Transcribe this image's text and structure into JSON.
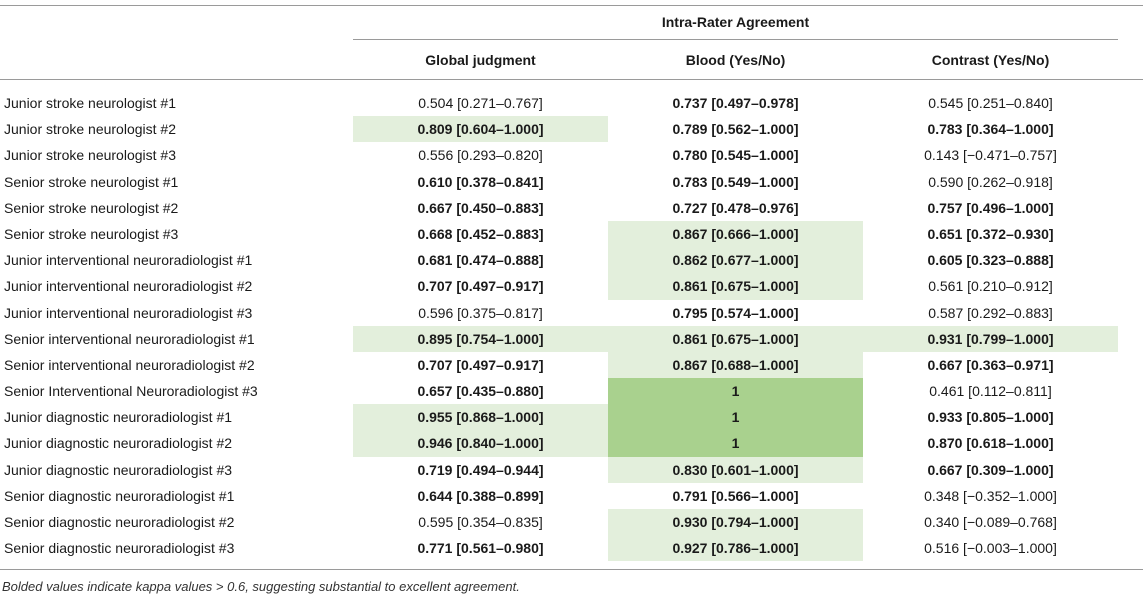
{
  "table": {
    "group_title": "Intra-Rater Agreement",
    "columns": [
      "Global judgment",
      "Blood (Yes/No)",
      "Contrast (Yes/No)"
    ],
    "rows": [
      {
        "label": "Junior stroke neurologist #1",
        "cells": [
          {
            "text": "0.504 [0.271–0.767]",
            "bold": false,
            "highlight": "none"
          },
          {
            "text": "0.737 [0.497–0.978]",
            "bold": true,
            "highlight": "none"
          },
          {
            "text": "0.545 [0.251–0.840]",
            "bold": false,
            "highlight": "none"
          }
        ]
      },
      {
        "label": "Junior stroke neurologist #2",
        "cells": [
          {
            "text": "0.809 [0.604–1.000]",
            "bold": true,
            "highlight": "light"
          },
          {
            "text": "0.789 [0.562–1.000]",
            "bold": true,
            "highlight": "none"
          },
          {
            "text": "0.783 [0.364–1.000]",
            "bold": true,
            "highlight": "none"
          }
        ]
      },
      {
        "label": "Junior stroke neurologist #3",
        "cells": [
          {
            "text": "0.556 [0.293–0.820]",
            "bold": false,
            "highlight": "none"
          },
          {
            "text": "0.780 [0.545–1.000]",
            "bold": true,
            "highlight": "none"
          },
          {
            "text": "0.143 [−0.471–0.757]",
            "bold": false,
            "highlight": "none"
          }
        ]
      },
      {
        "label": "Senior stroke neurologist #1",
        "cells": [
          {
            "text": "0.610 [0.378–0.841]",
            "bold": true,
            "highlight": "none"
          },
          {
            "text": "0.783 [0.549–1.000]",
            "bold": true,
            "highlight": "none"
          },
          {
            "text": "0.590 [0.262–0.918]",
            "bold": false,
            "highlight": "none"
          }
        ]
      },
      {
        "label": "Senior stroke neurologist #2",
        "cells": [
          {
            "text": "0.667 [0.450–0.883]",
            "bold": true,
            "highlight": "none"
          },
          {
            "text": "0.727 [0.478–0.976]",
            "bold": true,
            "highlight": "none"
          },
          {
            "text": "0.757 [0.496–1.000]",
            "bold": true,
            "highlight": "none"
          }
        ]
      },
      {
        "label": "Senior stroke neurologist #3",
        "cells": [
          {
            "text": "0.668 [0.452–0.883]",
            "bold": true,
            "highlight": "none"
          },
          {
            "text": "0.867 [0.666–1.000]",
            "bold": true,
            "highlight": "light"
          },
          {
            "text": "0.651 [0.372–0.930]",
            "bold": true,
            "highlight": "none"
          }
        ]
      },
      {
        "label": "Junior interventional neuroradiologist #1",
        "cells": [
          {
            "text": "0.681 [0.474–0.888]",
            "bold": true,
            "highlight": "none"
          },
          {
            "text": "0.862 [0.677–1.000]",
            "bold": true,
            "highlight": "light"
          },
          {
            "text": "0.605 [0.323–0.888]",
            "bold": true,
            "highlight": "none"
          }
        ]
      },
      {
        "label": "Junior interventional neuroradiologist #2",
        "cells": [
          {
            "text": "0.707 [0.497–0.917]",
            "bold": true,
            "highlight": "none"
          },
          {
            "text": "0.861 [0.675–1.000]",
            "bold": true,
            "highlight": "light"
          },
          {
            "text": "0.561 [0.210–0.912]",
            "bold": false,
            "highlight": "none"
          }
        ]
      },
      {
        "label": "Junior interventional neuroradiologist #3",
        "cells": [
          {
            "text": "0.596 [0.375–0.817]",
            "bold": false,
            "highlight": "none"
          },
          {
            "text": "0.795 [0.574–1.000]",
            "bold": true,
            "highlight": "none"
          },
          {
            "text": "0.587 [0.292–0.883]",
            "bold": false,
            "highlight": "none"
          }
        ]
      },
      {
        "label": "Senior interventional neuroradiologist #1",
        "cells": [
          {
            "text": "0.895 [0.754–1.000]",
            "bold": true,
            "highlight": "light"
          },
          {
            "text": "0.861 [0.675–1.000]",
            "bold": true,
            "highlight": "light"
          },
          {
            "text": "0.931 [0.799–1.000]",
            "bold": true,
            "highlight": "light"
          }
        ]
      },
      {
        "label": "Senior interventional neuroradiologist #2",
        "cells": [
          {
            "text": "0.707 [0.497–0.917]",
            "bold": true,
            "highlight": "none"
          },
          {
            "text": "0.867 [0.688–1.000]",
            "bold": true,
            "highlight": "light"
          },
          {
            "text": "0.667 [0.363–0.971]",
            "bold": true,
            "highlight": "none"
          }
        ]
      },
      {
        "label": "Senior Interventional Neuroradiologist #3",
        "cells": [
          {
            "text": "0.657 [0.435–0.880]",
            "bold": true,
            "highlight": "none"
          },
          {
            "text": "1",
            "bold": true,
            "highlight": "dark"
          },
          {
            "text": "0.461 [0.112–0.811]",
            "bold": false,
            "highlight": "none"
          }
        ]
      },
      {
        "label": "Junior diagnostic neuroradiologist #1",
        "cells": [
          {
            "text": "0.955 [0.868–1.000]",
            "bold": true,
            "highlight": "light"
          },
          {
            "text": "1",
            "bold": true,
            "highlight": "dark"
          },
          {
            "text": "0.933 [0.805–1.000]",
            "bold": true,
            "highlight": "none"
          }
        ]
      },
      {
        "label": "Junior diagnostic neuroradiologist #2",
        "cells": [
          {
            "text": "0.946 [0.840–1.000]",
            "bold": true,
            "highlight": "light"
          },
          {
            "text": "1",
            "bold": true,
            "highlight": "dark"
          },
          {
            "text": "0.870 [0.618–1.000]",
            "bold": true,
            "highlight": "none"
          }
        ]
      },
      {
        "label": "Junior diagnostic neuroradiologist #3",
        "cells": [
          {
            "text": "0.719 [0.494–0.944]",
            "bold": true,
            "highlight": "none"
          },
          {
            "text": "0.830 [0.601–1.000]",
            "bold": true,
            "highlight": "light"
          },
          {
            "text": "0.667 [0.309–1.000]",
            "bold": true,
            "highlight": "none"
          }
        ]
      },
      {
        "label": "Senior diagnostic neuroradiologist #1",
        "cells": [
          {
            "text": "0.644 [0.388–0.899]",
            "bold": true,
            "highlight": "none"
          },
          {
            "text": "0.791 [0.566–1.000]",
            "bold": true,
            "highlight": "none"
          },
          {
            "text": "0.348 [−0.352–1.000]",
            "bold": false,
            "highlight": "none"
          }
        ]
      },
      {
        "label": "Senior diagnostic neuroradiologist #2",
        "cells": [
          {
            "text": "0.595 [0.354–0.835]",
            "bold": false,
            "highlight": "none"
          },
          {
            "text": "0.930 [0.794–1.000]",
            "bold": true,
            "highlight": "light"
          },
          {
            "text": "0.340 [−0.089–0.768]",
            "bold": false,
            "highlight": "none"
          }
        ]
      },
      {
        "label": "Senior diagnostic neuroradiologist #3",
        "cells": [
          {
            "text": "0.771 [0.561–0.980]",
            "bold": true,
            "highlight": "none"
          },
          {
            "text": "0.927 [0.786–1.000]",
            "bold": true,
            "highlight": "light"
          },
          {
            "text": "0.516 [−0.003–1.000]",
            "bold": false,
            "highlight": "none"
          }
        ]
      }
    ],
    "footnote": "Bolded values indicate kappa values > 0.6, suggesting substantial to excellent agreement."
  },
  "colors": {
    "highlight_light": "#e3efdc",
    "highlight_dark": "#a9d18e",
    "rule": "#9a9a9a",
    "text": "#1a1a1a"
  }
}
